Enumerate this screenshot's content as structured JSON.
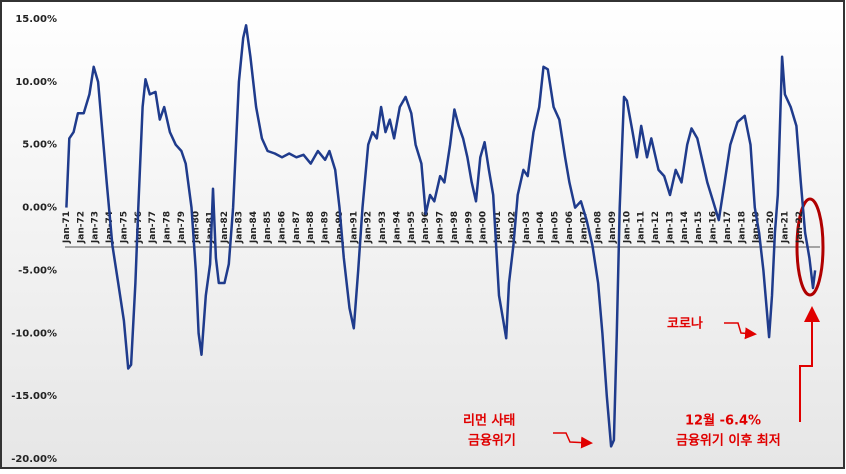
{
  "chart_data": {
    "type": "line",
    "series": [
      {
        "color": "#1f3b8c",
        "x": [
          1971.0,
          1971.2,
          1971.5,
          1971.8,
          1972.2,
          1972.6,
          1972.9,
          1973.2,
          1973.5,
          1973.8,
          1974.2,
          1974.6,
          1975.0,
          1975.3,
          1975.5,
          1975.8,
          1976.0,
          1976.3,
          1976.5,
          1976.8,
          1977.2,
          1977.5,
          1977.8,
          1978.2,
          1978.6,
          1979.0,
          1979.3,
          1979.7,
          1980.0,
          1980.2,
          1980.4,
          1980.7,
          1981.0,
          1981.2,
          1981.4,
          1981.6,
          1982.0,
          1982.3,
          1982.6,
          1982.8,
          1983.0,
          1983.3,
          1983.5,
          1983.8,
          1984.2,
          1984.6,
          1985.0,
          1985.5,
          1986.0,
          1986.5,
          1987.0,
          1987.5,
          1988.0,
          1988.5,
          1989.0,
          1989.3,
          1989.7,
          1990.0,
          1990.3,
          1990.7,
          1991.0,
          1991.3,
          1991.6,
          1992.0,
          1992.3,
          1992.6,
          1992.9,
          1993.2,
          1993.5,
          1993.8,
          1994.2,
          1994.6,
          1995.0,
          1995.3,
          1995.7,
          1996.0,
          1996.3,
          1996.6,
          1997.0,
          1997.3,
          1997.7,
          1998.0,
          1998.3,
          1998.6,
          1998.9,
          1999.2,
          1999.5,
          1999.8,
          2000.1,
          2000.4,
          2000.7,
          2000.9,
          2001.1,
          2001.4,
          2001.6,
          2001.8,
          2002.1,
          2002.4,
          2002.8,
          2003.1,
          2003.5,
          2003.9,
          2004.2,
          2004.5,
          2004.9,
          2005.3,
          2005.7,
          2006.0,
          2006.4,
          2006.8,
          2007.2,
          2007.6,
          2008.0,
          2008.3,
          2008.6,
          2008.9,
          2009.1,
          2009.3,
          2009.5,
          2009.8,
          2010.0,
          2010.4,
          2010.7,
          2011.0,
          2011.4,
          2011.7,
          2012.2,
          2012.6,
          2013.0,
          2013.4,
          2013.8,
          2014.2,
          2014.5,
          2014.9,
          2015.2,
          2015.6,
          2016.0,
          2016.4,
          2016.8,
          2017.2,
          2017.7,
          2018.2,
          2018.6,
          2018.9,
          2019.2,
          2019.5,
          2019.9,
          2020.1,
          2020.3,
          2020.5,
          2020.8,
          2021.0,
          2021.4,
          2021.8,
          2022.1,
          2022.4,
          2022.7,
          2022.95,
          2023.1
        ],
        "values": [
          0,
          5.5,
          6,
          7.5,
          7.5,
          9,
          11.2,
          10,
          6,
          2,
          -3,
          -6,
          -9,
          -12.8,
          -12.5,
          -6,
          0,
          8,
          10.2,
          9,
          9.2,
          7,
          8,
          6,
          5,
          4.5,
          3.5,
          0,
          -5,
          -10,
          -11.7,
          -7,
          -4.5,
          1.5,
          -4,
          -6,
          -6,
          -4.5,
          0,
          5,
          10,
          13.5,
          14.5,
          12,
          8,
          5.5,
          4.5,
          4.3,
          4,
          4.3,
          4,
          4.2,
          3.5,
          4.5,
          3.8,
          4.5,
          3,
          0,
          -4,
          -8,
          -9.6,
          -5,
          0,
          5,
          6,
          5.5,
          8,
          6,
          7,
          5.5,
          8,
          8.8,
          7.5,
          5,
          3.5,
          -0.5,
          1,
          0.5,
          2.5,
          2,
          5,
          7.8,
          6.5,
          5.5,
          4,
          2,
          0.5,
          4,
          5.2,
          3,
          1,
          -3,
          -7,
          -9,
          -10.4,
          -6,
          -3,
          1,
          3,
          2.5,
          6,
          8,
          11.2,
          11,
          8,
          7,
          4,
          2,
          0,
          0.5,
          -1,
          -3,
          -6,
          -10,
          -15,
          -19,
          -18.5,
          -10,
          0,
          8.8,
          8.5,
          6,
          4,
          6.5,
          4,
          5.5,
          3,
          2.5,
          1,
          3,
          2,
          5,
          6.3,
          5.5,
          4,
          2,
          0.5,
          -1,
          2,
          5,
          6.8,
          7.3,
          5,
          0,
          -2,
          -5,
          -10.3,
          -7,
          -2,
          1,
          12,
          9,
          8,
          6.5,
          2,
          -2,
          -4,
          -6.4,
          -5
        ]
      }
    ],
    "xlim": [
      1970.9,
      2023.3
    ],
    "xticks": [
      {
        "value": 1971,
        "label": "Jan-71"
      },
      {
        "value": 1972,
        "label": "Jan-72"
      },
      {
        "value": 1973,
        "label": "Jan-73"
      },
      {
        "value": 1974,
        "label": "Jan-74"
      },
      {
        "value": 1975,
        "label": "Jan-75"
      },
      {
        "value": 1976,
        "label": "Jan-76"
      },
      {
        "value": 1977,
        "label": "Jan-77"
      },
      {
        "value": 1978,
        "label": "Jan-78"
      },
      {
        "value": 1979,
        "label": "Jan-79"
      },
      {
        "value": 1980,
        "label": "Jan-80"
      },
      {
        "value": 1981,
        "label": "Jan-81"
      },
      {
        "value": 1982,
        "label": "Jan-82"
      },
      {
        "value": 1983,
        "label": "Jan-83"
      },
      {
        "value": 1984,
        "label": "Jan-84"
      },
      {
        "value": 1985,
        "label": "Jan-85"
      },
      {
        "value": 1986,
        "label": "Jan-86"
      },
      {
        "value": 1987,
        "label": "Jan-87"
      },
      {
        "value": 1988,
        "label": "Jan-88"
      },
      {
        "value": 1989,
        "label": "Jan-89"
      },
      {
        "value": 1990,
        "label": "Jan-90"
      },
      {
        "value": 1991,
        "label": "Jan-91"
      },
      {
        "value": 1992,
        "label": "Jan-92"
      },
      {
        "value": 1993,
        "label": "Jan-93"
      },
      {
        "value": 1994,
        "label": "Jan-94"
      },
      {
        "value": 1995,
        "label": "Jan-95"
      },
      {
        "value": 1996,
        "label": "Jan-96"
      },
      {
        "value": 1997,
        "label": "Jan-97"
      },
      {
        "value": 1998,
        "label": "Jan-98"
      },
      {
        "value": 1999,
        "label": "Jan-99"
      },
      {
        "value": 2000,
        "label": "Jan-00"
      },
      {
        "value": 2001,
        "label": "Jan-01"
      },
      {
        "value": 2002,
        "label": "Jan-02"
      },
      {
        "value": 2003,
        "label": "Jan-03"
      },
      {
        "value": 2004,
        "label": "Jan-04"
      },
      {
        "value": 2005,
        "label": "Jan-05"
      },
      {
        "value": 2006,
        "label": "Jan-06"
      },
      {
        "value": 2007,
        "label": "Jan-07"
      },
      {
        "value": 2008,
        "label": "Jan-08"
      },
      {
        "value": 2009,
        "label": "Jan-09"
      },
      {
        "value": 2010,
        "label": "Jan-10"
      },
      {
        "value": 2011,
        "label": "Jan-11"
      },
      {
        "value": 2012,
        "label": "Jan-12"
      },
      {
        "value": 2013,
        "label": "Jan-13"
      },
      {
        "value": 2014,
        "label": "Jan-14"
      },
      {
        "value": 2015,
        "label": "Jan-15"
      },
      {
        "value": 2016,
        "label": "Jan-16"
      },
      {
        "value": 2017,
        "label": "Jan-17"
      },
      {
        "value": 2018,
        "label": "Jan-18"
      },
      {
        "value": 2019,
        "label": "Jan-19"
      },
      {
        "value": 2020,
        "label": "Jan-20"
      },
      {
        "value": 2021,
        "label": "Jan-21"
      },
      {
        "value": 2022,
        "label": "Jan-22"
      }
    ],
    "ylim": [
      -20,
      15
    ],
    "yticks": [
      {
        "value": 15,
        "label": "15.00%"
      },
      {
        "value": 10,
        "label": "10.00%"
      },
      {
        "value": 5,
        "label": "5.00%"
      },
      {
        "value": 0,
        "label": "0.00%"
      },
      {
        "value": -5,
        "label": "-5.00%"
      },
      {
        "value": -10,
        "label": "-10.00%"
      },
      {
        "value": -15,
        "label": "-15.00%"
      },
      {
        "value": -20,
        "label": "-20.00%"
      }
    ],
    "annotations": [
      "코로나",
      "리먼 사태",
      "금융위기",
      "12월 -6.4%",
      "금융위기 이후 최저"
    ]
  }
}
